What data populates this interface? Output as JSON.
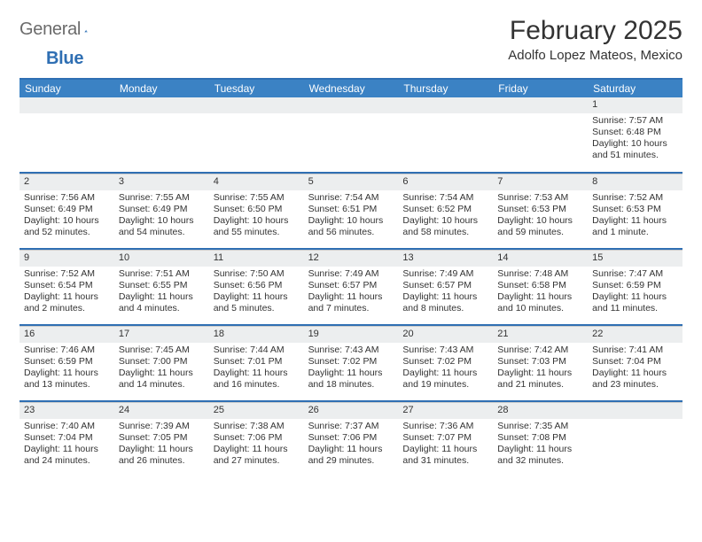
{
  "brand": {
    "part1": "Genera",
    "part2": "l",
    "part3": "Blue"
  },
  "title": "February 2025",
  "location": "Adolfo Lopez Mateos, Mexico",
  "colors": {
    "header_bar": "#3b82c4",
    "rule": "#2f6fb3",
    "daynum_bg": "#eceeef",
    "text": "#333333",
    "logo_gray": "#6b6b6b",
    "logo_blue": "#2f6fb3"
  },
  "day_labels": [
    "Sunday",
    "Monday",
    "Tuesday",
    "Wednesday",
    "Thursday",
    "Friday",
    "Saturday"
  ],
  "weeks": [
    [
      {
        "day": "",
        "sunrise": "",
        "sunset": "",
        "daylight": ""
      },
      {
        "day": "",
        "sunrise": "",
        "sunset": "",
        "daylight": ""
      },
      {
        "day": "",
        "sunrise": "",
        "sunset": "",
        "daylight": ""
      },
      {
        "day": "",
        "sunrise": "",
        "sunset": "",
        "daylight": ""
      },
      {
        "day": "",
        "sunrise": "",
        "sunset": "",
        "daylight": ""
      },
      {
        "day": "",
        "sunrise": "",
        "sunset": "",
        "daylight": ""
      },
      {
        "day": "1",
        "sunrise": "Sunrise: 7:57 AM",
        "sunset": "Sunset: 6:48 PM",
        "daylight": "Daylight: 10 hours and 51 minutes."
      }
    ],
    [
      {
        "day": "2",
        "sunrise": "Sunrise: 7:56 AM",
        "sunset": "Sunset: 6:49 PM",
        "daylight": "Daylight: 10 hours and 52 minutes."
      },
      {
        "day": "3",
        "sunrise": "Sunrise: 7:55 AM",
        "sunset": "Sunset: 6:49 PM",
        "daylight": "Daylight: 10 hours and 54 minutes."
      },
      {
        "day": "4",
        "sunrise": "Sunrise: 7:55 AM",
        "sunset": "Sunset: 6:50 PM",
        "daylight": "Daylight: 10 hours and 55 minutes."
      },
      {
        "day": "5",
        "sunrise": "Sunrise: 7:54 AM",
        "sunset": "Sunset: 6:51 PM",
        "daylight": "Daylight: 10 hours and 56 minutes."
      },
      {
        "day": "6",
        "sunrise": "Sunrise: 7:54 AM",
        "sunset": "Sunset: 6:52 PM",
        "daylight": "Daylight: 10 hours and 58 minutes."
      },
      {
        "day": "7",
        "sunrise": "Sunrise: 7:53 AM",
        "sunset": "Sunset: 6:53 PM",
        "daylight": "Daylight: 10 hours and 59 minutes."
      },
      {
        "day": "8",
        "sunrise": "Sunrise: 7:52 AM",
        "sunset": "Sunset: 6:53 PM",
        "daylight": "Daylight: 11 hours and 1 minute."
      }
    ],
    [
      {
        "day": "9",
        "sunrise": "Sunrise: 7:52 AM",
        "sunset": "Sunset: 6:54 PM",
        "daylight": "Daylight: 11 hours and 2 minutes."
      },
      {
        "day": "10",
        "sunrise": "Sunrise: 7:51 AM",
        "sunset": "Sunset: 6:55 PM",
        "daylight": "Daylight: 11 hours and 4 minutes."
      },
      {
        "day": "11",
        "sunrise": "Sunrise: 7:50 AM",
        "sunset": "Sunset: 6:56 PM",
        "daylight": "Daylight: 11 hours and 5 minutes."
      },
      {
        "day": "12",
        "sunrise": "Sunrise: 7:49 AM",
        "sunset": "Sunset: 6:57 PM",
        "daylight": "Daylight: 11 hours and 7 minutes."
      },
      {
        "day": "13",
        "sunrise": "Sunrise: 7:49 AM",
        "sunset": "Sunset: 6:57 PM",
        "daylight": "Daylight: 11 hours and 8 minutes."
      },
      {
        "day": "14",
        "sunrise": "Sunrise: 7:48 AM",
        "sunset": "Sunset: 6:58 PM",
        "daylight": "Daylight: 11 hours and 10 minutes."
      },
      {
        "day": "15",
        "sunrise": "Sunrise: 7:47 AM",
        "sunset": "Sunset: 6:59 PM",
        "daylight": "Daylight: 11 hours and 11 minutes."
      }
    ],
    [
      {
        "day": "16",
        "sunrise": "Sunrise: 7:46 AM",
        "sunset": "Sunset: 6:59 PM",
        "daylight": "Daylight: 11 hours and 13 minutes."
      },
      {
        "day": "17",
        "sunrise": "Sunrise: 7:45 AM",
        "sunset": "Sunset: 7:00 PM",
        "daylight": "Daylight: 11 hours and 14 minutes."
      },
      {
        "day": "18",
        "sunrise": "Sunrise: 7:44 AM",
        "sunset": "Sunset: 7:01 PM",
        "daylight": "Daylight: 11 hours and 16 minutes."
      },
      {
        "day": "19",
        "sunrise": "Sunrise: 7:43 AM",
        "sunset": "Sunset: 7:02 PM",
        "daylight": "Daylight: 11 hours and 18 minutes."
      },
      {
        "day": "20",
        "sunrise": "Sunrise: 7:43 AM",
        "sunset": "Sunset: 7:02 PM",
        "daylight": "Daylight: 11 hours and 19 minutes."
      },
      {
        "day": "21",
        "sunrise": "Sunrise: 7:42 AM",
        "sunset": "Sunset: 7:03 PM",
        "daylight": "Daylight: 11 hours and 21 minutes."
      },
      {
        "day": "22",
        "sunrise": "Sunrise: 7:41 AM",
        "sunset": "Sunset: 7:04 PM",
        "daylight": "Daylight: 11 hours and 23 minutes."
      }
    ],
    [
      {
        "day": "23",
        "sunrise": "Sunrise: 7:40 AM",
        "sunset": "Sunset: 7:04 PM",
        "daylight": "Daylight: 11 hours and 24 minutes."
      },
      {
        "day": "24",
        "sunrise": "Sunrise: 7:39 AM",
        "sunset": "Sunset: 7:05 PM",
        "daylight": "Daylight: 11 hours and 26 minutes."
      },
      {
        "day": "25",
        "sunrise": "Sunrise: 7:38 AM",
        "sunset": "Sunset: 7:06 PM",
        "daylight": "Daylight: 11 hours and 27 minutes."
      },
      {
        "day": "26",
        "sunrise": "Sunrise: 7:37 AM",
        "sunset": "Sunset: 7:06 PM",
        "daylight": "Daylight: 11 hours and 29 minutes."
      },
      {
        "day": "27",
        "sunrise": "Sunrise: 7:36 AM",
        "sunset": "Sunset: 7:07 PM",
        "daylight": "Daylight: 11 hours and 31 minutes."
      },
      {
        "day": "28",
        "sunrise": "Sunrise: 7:35 AM",
        "sunset": "Sunset: 7:08 PM",
        "daylight": "Daylight: 11 hours and 32 minutes."
      },
      {
        "day": "",
        "sunrise": "",
        "sunset": "",
        "daylight": ""
      }
    ]
  ]
}
